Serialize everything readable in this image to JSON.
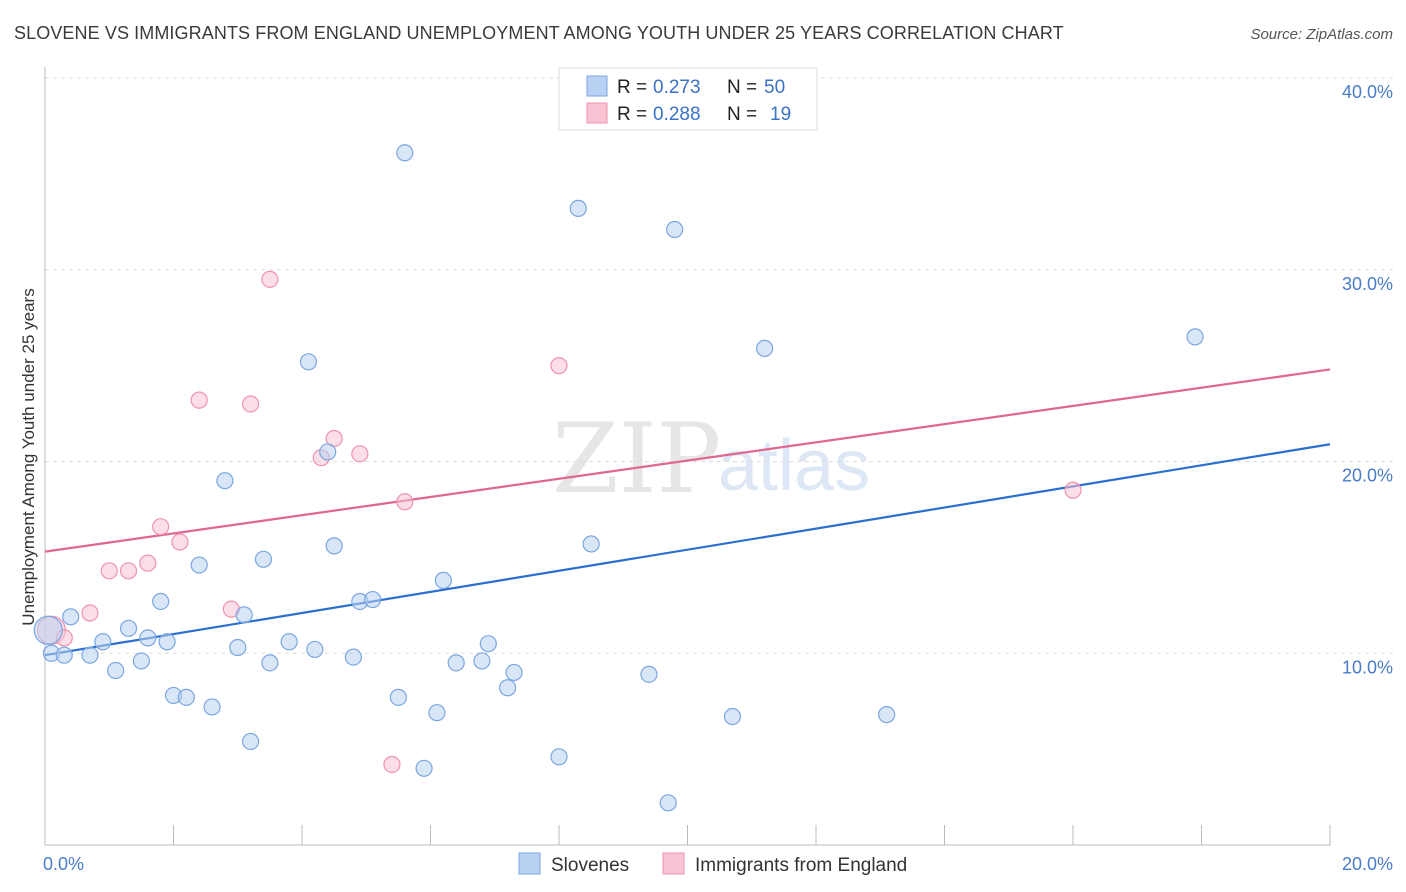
{
  "title": "SLOVENE VS IMMIGRANTS FROM ENGLAND UNEMPLOYMENT AMONG YOUTH UNDER 25 YEARS CORRELATION CHART",
  "source": "Source: ZipAtlas.com",
  "watermark": {
    "zip": "ZIP",
    "atlas": "atlas"
  },
  "legend": {
    "r_label": "R =",
    "n_label": "N =",
    "rows": [
      {
        "r": "0.273",
        "n": "50"
      },
      {
        "r": "0.288",
        "n": "19"
      }
    ]
  },
  "colors": {
    "blue_fill": "#b8d1f3",
    "blue_stroke": "#7aa6e0",
    "blue_line": "#2a6fcf",
    "pink_fill": "#f8c3d3",
    "pink_stroke": "#ef93ae",
    "pink_line": "#e0678f",
    "tick_text": "#4a7cc9",
    "grid": "#dddddd"
  },
  "chart_data": {
    "type": "scatter",
    "title": "SLOVENE VS IMMIGRANTS FROM ENGLAND UNEMPLOYMENT AMONG YOUTH UNDER 25 YEARS CORRELATION CHART",
    "xlabel": "",
    "ylabel": "Unemployment Among Youth under 25 years",
    "xlim": [
      0,
      20
    ],
    "ylim": [
      0,
      40
    ],
    "x_tick_labels": [
      "0.0%",
      "20.0%"
    ],
    "y_ticks": [
      10,
      20,
      30,
      40
    ],
    "y_tick_labels": [
      "10.0%",
      "20.0%",
      "30.0%",
      "40.0%"
    ],
    "grid": true,
    "legend_position": "bottom",
    "series": [
      {
        "name": "Slovenes",
        "points": [
          [
            0.1,
            10.0
          ],
          [
            0.3,
            9.9
          ],
          [
            0.4,
            11.9
          ],
          [
            0.7,
            9.9
          ],
          [
            0.9,
            10.6
          ],
          [
            1.1,
            9.1
          ],
          [
            1.3,
            11.3
          ],
          [
            1.5,
            9.6
          ],
          [
            1.6,
            10.8
          ],
          [
            1.8,
            12.7
          ],
          [
            1.9,
            10.6
          ],
          [
            2.0,
            7.8
          ],
          [
            2.2,
            7.7
          ],
          [
            2.4,
            14.6
          ],
          [
            2.6,
            7.2
          ],
          [
            2.8,
            19.0
          ],
          [
            3.0,
            10.3
          ],
          [
            3.1,
            12.0
          ],
          [
            3.2,
            5.4
          ],
          [
            3.4,
            14.9
          ],
          [
            3.5,
            9.5
          ],
          [
            3.8,
            10.6
          ],
          [
            4.1,
            25.2
          ],
          [
            4.2,
            10.2
          ],
          [
            4.4,
            20.5
          ],
          [
            4.5,
            15.6
          ],
          [
            4.8,
            9.8
          ],
          [
            4.9,
            12.7
          ],
          [
            5.1,
            12.8
          ],
          [
            5.5,
            7.7
          ],
          [
            5.6,
            36.1
          ],
          [
            5.9,
            4.0
          ],
          [
            6.1,
            6.9
          ],
          [
            6.2,
            13.8
          ],
          [
            6.4,
            9.5
          ],
          [
            6.8,
            9.6
          ],
          [
            6.9,
            10.5
          ],
          [
            7.2,
            8.2
          ],
          [
            7.3,
            9.0
          ],
          [
            8.0,
            4.6
          ],
          [
            8.3,
            33.2
          ],
          [
            8.5,
            15.7
          ],
          [
            9.4,
            8.9
          ],
          [
            9.7,
            2.2
          ],
          [
            9.8,
            32.1
          ],
          [
            10.7,
            6.7
          ],
          [
            11.2,
            25.9
          ],
          [
            13.1,
            6.8
          ],
          [
            17.9,
            26.5
          ],
          [
            0.05,
            11.2
          ]
        ],
        "trend": {
          "x": [
            0,
            20
          ],
          "y": [
            9.9,
            20.9
          ]
        }
      },
      {
        "name": "Immigrants from England",
        "points": [
          [
            0.1,
            11.2
          ],
          [
            0.3,
            10.8
          ],
          [
            0.7,
            12.1
          ],
          [
            1.0,
            14.3
          ],
          [
            1.3,
            14.3
          ],
          [
            1.6,
            14.7
          ],
          [
            1.8,
            16.6
          ],
          [
            2.1,
            15.8
          ],
          [
            2.4,
            23.2
          ],
          [
            2.9,
            12.3
          ],
          [
            3.2,
            23.0
          ],
          [
            3.5,
            29.5
          ],
          [
            4.3,
            20.2
          ],
          [
            4.5,
            21.2
          ],
          [
            4.9,
            20.4
          ],
          [
            5.4,
            4.2
          ],
          [
            5.6,
            17.9
          ],
          [
            8.0,
            25.0
          ],
          [
            16.0,
            18.5
          ]
        ],
        "trend": {
          "x": [
            0,
            20
          ],
          "y": [
            15.3,
            24.8
          ]
        }
      }
    ]
  }
}
